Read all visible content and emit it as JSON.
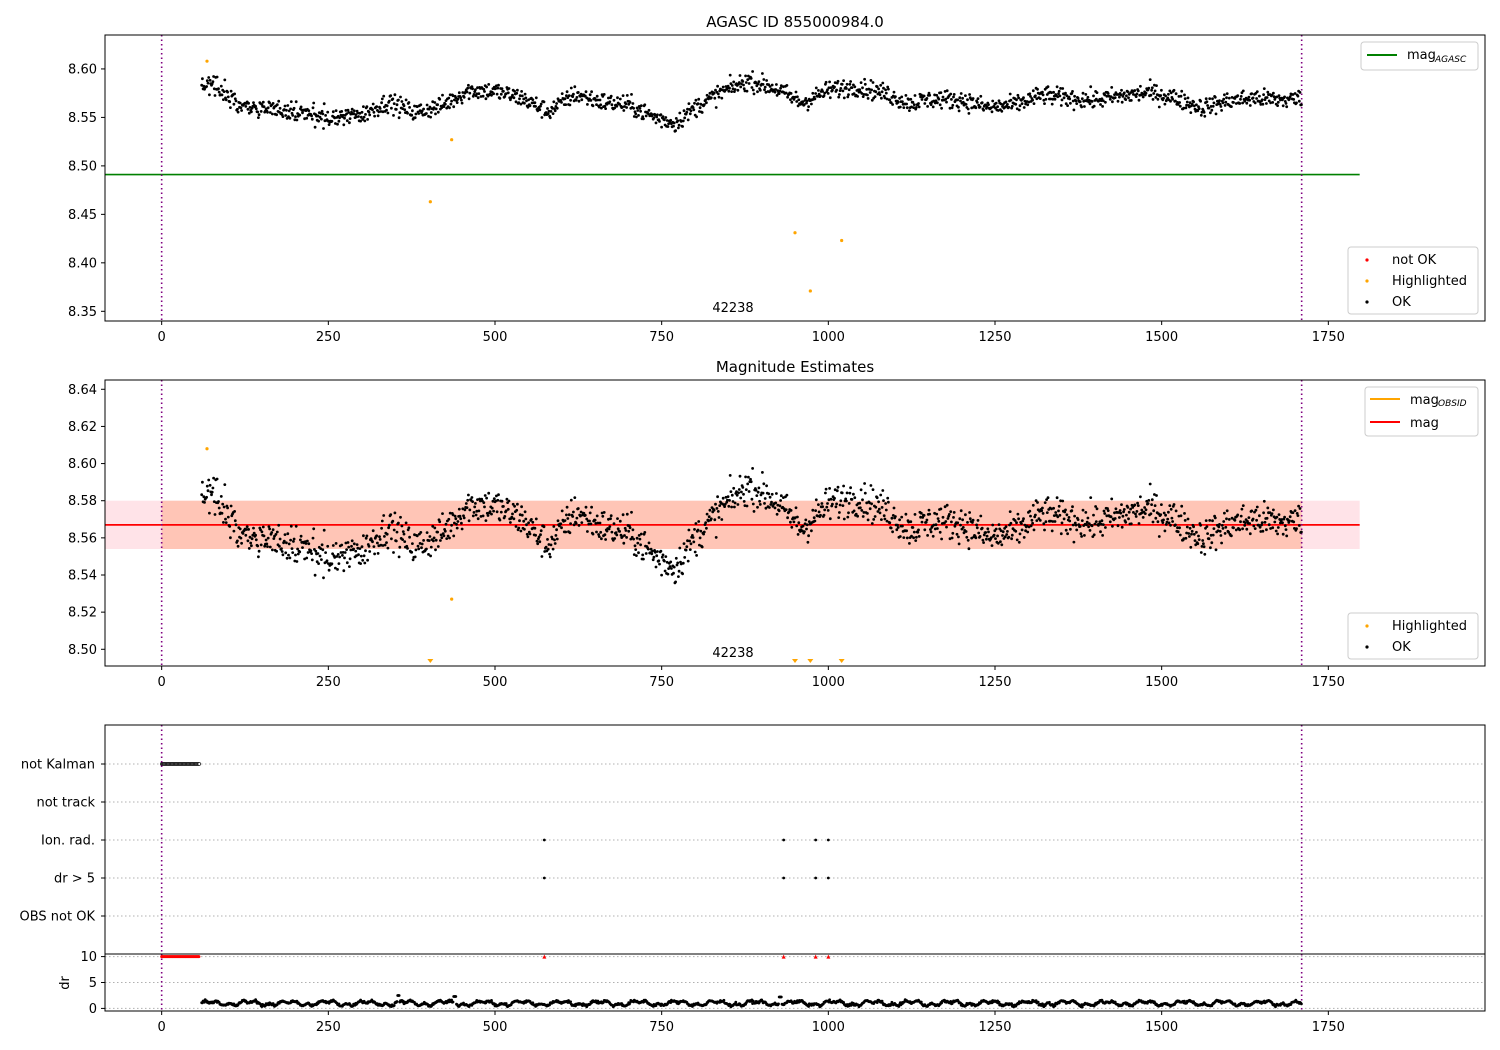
{
  "chart_data": [
    {
      "id": "panel1",
      "type": "scatter",
      "title": "AGASC ID 855000984.0",
      "xlabel": "",
      "ylabel": "",
      "xlim": [
        -85,
        1985
      ],
      "ylim": [
        8.34,
        8.635
      ],
      "xticks": [
        0,
        250,
        500,
        750,
        1000,
        1250,
        1500,
        1750
      ],
      "xtick_labels": [
        "0",
        "250",
        "500",
        "750",
        "1000",
        "1250",
        "1500",
        "1750"
      ],
      "yticks": [
        8.35,
        8.4,
        8.45,
        8.5,
        8.55,
        8.6
      ],
      "ytick_labels": [
        "8.35",
        "8.40",
        "8.45",
        "8.50",
        "8.55",
        "8.60"
      ],
      "hlines": [
        {
          "name": "mag_AGASC",
          "y": 8.491,
          "x": [
            -85,
            1797
          ],
          "color": "#008000"
        }
      ],
      "vlines": [
        0,
        1710
      ],
      "annotations": [
        {
          "text": "42238",
          "x": 855,
          "y": 8.355
        }
      ],
      "ok_trend": [
        [
          60,
          8.585
        ],
        [
          80,
          8.585
        ],
        [
          110,
          8.565
        ],
        [
          150,
          8.56
        ],
        [
          200,
          8.555
        ],
        [
          250,
          8.549
        ],
        [
          300,
          8.553
        ],
        [
          340,
          8.566
        ],
        [
          380,
          8.555
        ],
        [
          420,
          8.562
        ],
        [
          460,
          8.578
        ],
        [
          500,
          8.577
        ],
        [
          540,
          8.57
        ],
        [
          580,
          8.556
        ],
        [
          620,
          8.574
        ],
        [
          660,
          8.566
        ],
        [
          700,
          8.563
        ],
        [
          740,
          8.55
        ],
        [
          770,
          8.544
        ],
        [
          800,
          8.56
        ],
        [
          840,
          8.576
        ],
        [
          880,
          8.588
        ],
        [
          920,
          8.58
        ],
        [
          960,
          8.565
        ],
        [
          1000,
          8.578
        ],
        [
          1040,
          8.582
        ],
        [
          1080,
          8.576
        ],
        [
          1120,
          8.565
        ],
        [
          1160,
          8.569
        ],
        [
          1200,
          8.568
        ],
        [
          1240,
          8.56
        ],
        [
          1280,
          8.563
        ],
        [
          1320,
          8.573
        ],
        [
          1360,
          8.57
        ],
        [
          1400,
          8.568
        ],
        [
          1440,
          8.572
        ],
        [
          1480,
          8.576
        ],
        [
          1520,
          8.57
        ],
        [
          1560,
          8.56
        ],
        [
          1600,
          8.567
        ],
        [
          1640,
          8.57
        ],
        [
          1680,
          8.568
        ],
        [
          1710,
          8.57
        ]
      ],
      "ok_range": [
        60,
        1710
      ],
      "highlighted": [
        {
          "x": 68,
          "y": 8.608
        },
        {
          "x": 403,
          "y": 8.463
        },
        {
          "x": 435,
          "y": 8.527
        },
        {
          "x": 950,
          "y": 8.431
        },
        {
          "x": 973,
          "y": 8.371
        },
        {
          "x": 1020,
          "y": 8.423
        }
      ],
      "legends": [
        {
          "position": "upper right",
          "entries": [
            {
              "label": "mag",
              "sub": "AGASC",
              "kind": "line",
              "color": "#008000"
            }
          ]
        },
        {
          "position": "lower right",
          "entries": [
            {
              "label": "not OK",
              "kind": "dot",
              "color": "#ff0000"
            },
            {
              "label": "Highlighted",
              "kind": "dot",
              "color": "#ffa500"
            },
            {
              "label": "OK",
              "kind": "dot",
              "color": "#000000"
            }
          ]
        }
      ]
    },
    {
      "id": "panel2",
      "type": "scatter",
      "title": "Magnitude Estimates",
      "xlabel": "",
      "ylabel": "",
      "xlim": [
        -85,
        1985
      ],
      "ylim": [
        8.491,
        8.645
      ],
      "xticks": [
        0,
        250,
        500,
        750,
        1000,
        1250,
        1500,
        1750
      ],
      "xtick_labels": [
        "0",
        "250",
        "500",
        "750",
        "1000",
        "1250",
        "1500",
        "1750"
      ],
      "yticks": [
        8.5,
        8.52,
        8.54,
        8.56,
        8.58,
        8.6,
        8.62,
        8.64
      ],
      "ytick_labels": [
        "8.50",
        "8.52",
        "8.54",
        "8.56",
        "8.58",
        "8.60",
        "8.62",
        "8.64"
      ],
      "hlines": [
        {
          "name": "mag",
          "y": 8.567,
          "x": [
            -85,
            1797
          ],
          "color": "#ff0000"
        }
      ],
      "bands": [
        {
          "name": "mag_OBSID band",
          "y": [
            8.554,
            8.58
          ],
          "x": [
            0,
            1710
          ],
          "color": "#ffa07a",
          "opacity": 0.45
        },
        {
          "name": "mag band",
          "y": [
            8.554,
            8.58
          ],
          "x": [
            -85,
            1797
          ],
          "color": "#ffc0cb",
          "opacity": 0.45
        }
      ],
      "vlines": [
        0,
        1710
      ],
      "annotations": [
        {
          "text": "42238",
          "x": 855,
          "y": 8.496
        }
      ],
      "ok_range": [
        60,
        1710
      ],
      "highlighted": [
        {
          "x": 68,
          "y": 8.608
        },
        {
          "x": 435,
          "y": 8.527
        }
      ],
      "highlighted_offscale": [
        403,
        950,
        973,
        1020
      ],
      "legends": [
        {
          "position": "upper right",
          "entries": [
            {
              "label": "mag",
              "sub": "OBSID",
              "kind": "line",
              "color": "#ffa500"
            },
            {
              "label": "mag",
              "kind": "line",
              "color": "#ff0000"
            }
          ]
        },
        {
          "position": "lower right",
          "entries": [
            {
              "label": "Highlighted",
              "kind": "dot",
              "color": "#ffa500"
            },
            {
              "label": "OK",
              "kind": "dot",
              "color": "#000000"
            }
          ]
        }
      ]
    },
    {
      "id": "panel3",
      "type": "scatter",
      "title": "",
      "xlim": [
        -85,
        1985
      ],
      "categories": [
        "not Kalman",
        "not track",
        "Ion. rad.",
        "dr > 5",
        "OBS not OK"
      ],
      "flags": {
        "not Kalman": {
          "range": [
            0,
            57
          ]
        },
        "not track": {
          "points": []
        },
        "Ion. rad.": {
          "points": [
            574,
            933,
            981,
            1000
          ]
        },
        "dr > 5": {
          "points": [
            574,
            933,
            981,
            1000
          ]
        },
        "OBS not OK": {
          "points": []
        }
      },
      "vlines": [
        0,
        1710
      ]
    },
    {
      "id": "panel4",
      "type": "scatter",
      "title": "",
      "ylabel": "dr",
      "xlim": [
        -85,
        1985
      ],
      "ylim": [
        -0.5,
        10.5
      ],
      "xticks": [
        0,
        250,
        500,
        750,
        1000,
        1250,
        1500,
        1750
      ],
      "xtick_labels": [
        "0",
        "250",
        "500",
        "750",
        "1000",
        "1250",
        "1500",
        "1750"
      ],
      "yticks": [
        0,
        5,
        10
      ],
      "ytick_labels": [
        "0",
        "5",
        "10"
      ],
      "red_markers": {
        "range": [
          0,
          57
        ],
        "y": 10,
        "extra_x": [
          574,
          933,
          981,
          1000
        ]
      },
      "dr_range": [
        60,
        1710
      ],
      "dr_peaks": [
        {
          "x": 355,
          "y": 2.5
        },
        {
          "x": 440,
          "y": 2.3
        },
        {
          "x": 928,
          "y": 2.2
        }
      ],
      "vlines": [
        0,
        1710
      ]
    }
  ]
}
